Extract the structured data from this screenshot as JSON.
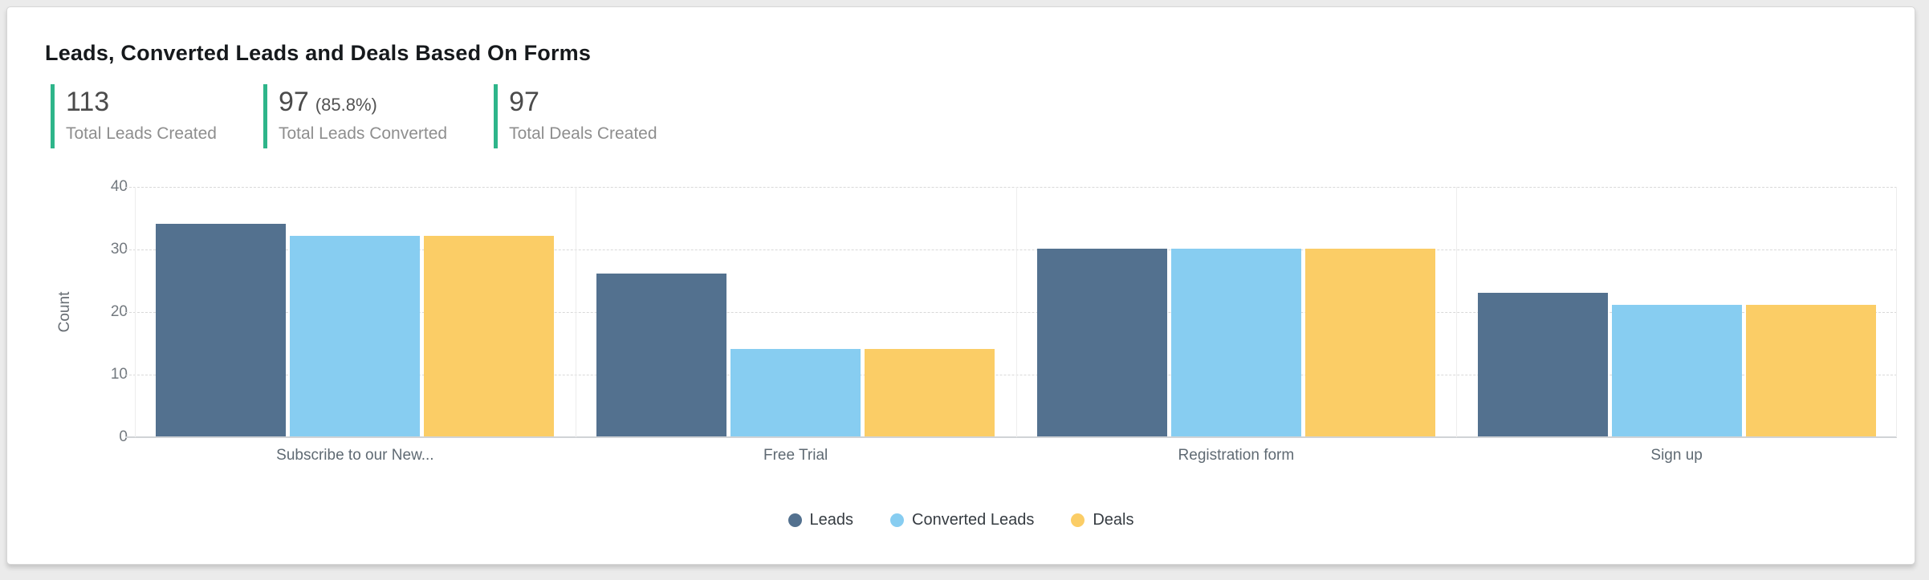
{
  "card": {
    "title": "Leads, Converted Leads and Deals Based On Forms",
    "accent_color": "#2eb58a",
    "kpis": [
      {
        "value": "113",
        "percent": "",
        "label": "Total Leads Created"
      },
      {
        "value": "97",
        "percent": "(85.8%)",
        "label": "Total Leads Converted"
      },
      {
        "value": "97",
        "percent": "",
        "label": "Total Deals Created"
      }
    ]
  },
  "chart_data": {
    "type": "bar",
    "title": "Leads, Converted Leads and Deals Based On Forms",
    "categories": [
      "Subscribe to our New...",
      "Free Trial",
      "Registration form",
      "Sign up"
    ],
    "series": [
      {
        "name": "Leads",
        "color": "#53718f",
        "values": [
          34,
          26,
          30,
          23
        ]
      },
      {
        "name": "Converted Leads",
        "color": "#87cdf1",
        "values": [
          32,
          14,
          30,
          21
        ]
      },
      {
        "name": "Deals",
        "color": "#fbcd66",
        "values": [
          32,
          14,
          30,
          21
        ]
      }
    ],
    "xlabel": "",
    "ylabel": "Count",
    "ylim": [
      0,
      40
    ],
    "yticks": [
      0,
      10,
      20,
      30,
      40
    ],
    "grid": "horizontal-dashed",
    "legend_position": "bottom-center"
  }
}
